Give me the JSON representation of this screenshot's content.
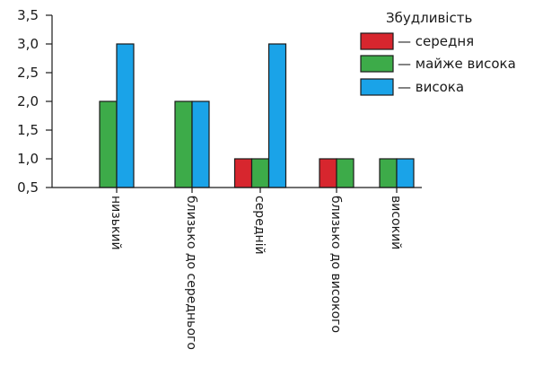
{
  "chart_data": {
    "type": "bar",
    "categories": [
      "низький",
      "близько до середнього",
      "середній",
      "близько до високого",
      "високий"
    ],
    "series": [
      {
        "name": "— середня",
        "values": [
          null,
          null,
          1,
          1,
          null
        ],
        "color": "#d7262e"
      },
      {
        "name": "— майже висока",
        "values": [
          2,
          2,
          1,
          1,
          1
        ],
        "color": "#3dab49"
      },
      {
        "name": "— висока",
        "values": [
          3,
          2,
          3,
          null,
          1
        ],
        "color": "#1aa3e8"
      }
    ],
    "ylim": [
      0.5,
      3.5
    ],
    "yticks": [
      "0,5",
      "1,0",
      "1,5",
      "2,0",
      "2,5",
      "3,0",
      "3,5"
    ],
    "legend": {
      "title": "Збудливість",
      "position": "top-right"
    },
    "grid": false
  }
}
